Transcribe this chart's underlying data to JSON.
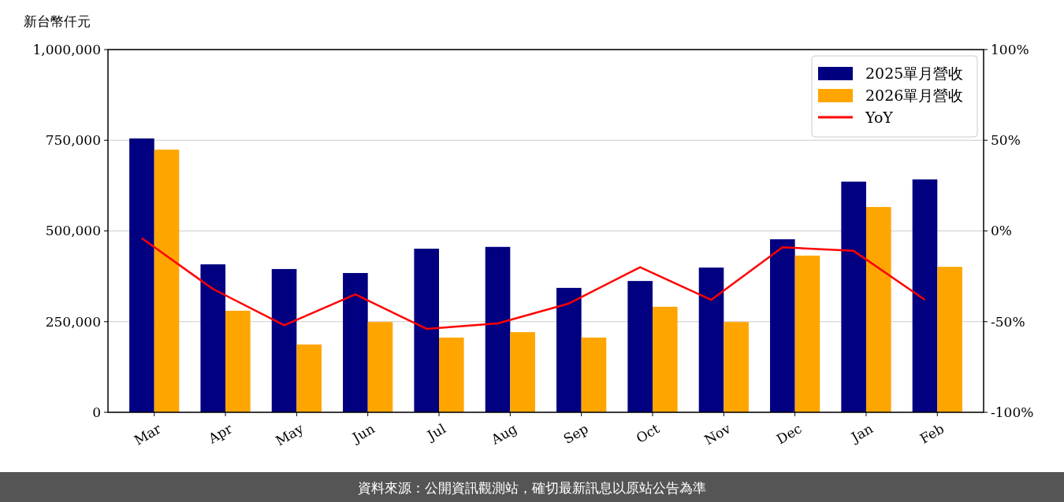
{
  "chart_data": {
    "type": "bar",
    "ylabel": "新台幣仟元",
    "categories": [
      "Mar",
      "Apr",
      "May",
      "Jun",
      "Jul",
      "Aug",
      "Sep",
      "Oct",
      "Nov",
      "Dec",
      "Jan",
      "Feb"
    ],
    "series": [
      {
        "name": "2025單月營收",
        "color": "#000080",
        "values": [
          755000,
          408000,
          395000,
          384000,
          451000,
          456000,
          343000,
          362000,
          399000,
          477000,
          636000,
          642000
        ]
      },
      {
        "name": "2026單月營收",
        "color": "#ffa500",
        "values": [
          724000,
          280000,
          187000,
          249000,
          206000,
          221000,
          206000,
          291000,
          249000,
          432000,
          566000,
          401000
        ]
      },
      {
        "name": "YoY",
        "type": "line",
        "axis": "y2",
        "color": "#ff0000",
        "values": [
          -4,
          -32,
          -52,
          -35,
          -54,
          -51,
          -40,
          -20,
          -38,
          -9,
          -11,
          -38
        ]
      }
    ],
    "ylim": [
      0,
      1000000
    ],
    "yticks": [
      {
        "value": 0,
        "label": "0"
      },
      {
        "value": 250000,
        "label": "250,000"
      },
      {
        "value": 500000,
        "label": "500,000"
      },
      {
        "value": 750000,
        "label": "750,000"
      },
      {
        "value": 1000000,
        "label": "1,000,000"
      }
    ],
    "y2lim": [
      -100,
      100
    ],
    "y2ticks": [
      {
        "value": -100,
        "label": "-100%"
      },
      {
        "value": -50,
        "label": "-50%"
      },
      {
        "value": 0,
        "label": "0%"
      },
      {
        "value": 50,
        "label": "50%"
      },
      {
        "value": 100,
        "label": "100%"
      }
    ],
    "grid": "y",
    "legend": "top right",
    "marker": "none",
    "line_style": "solid",
    "annotations": [
      "資料來源：公開資訊觀測站，確切最新訊息以原站公告為準"
    ]
  }
}
